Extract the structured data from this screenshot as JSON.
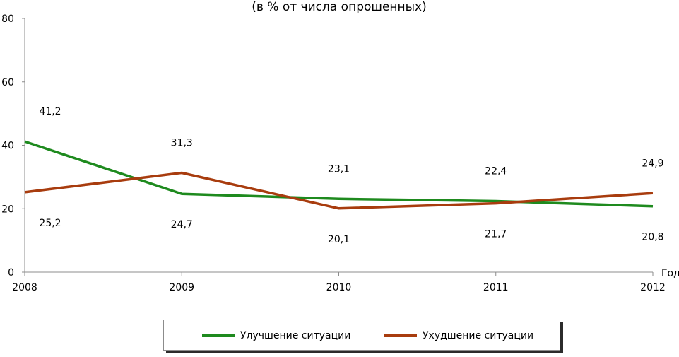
{
  "chart_data": {
    "type": "line",
    "title": "(в % от числа опрошенных)",
    "x_axis_label": "Год",
    "categories": [
      "2008",
      "2009",
      "2010",
      "2011",
      "2012"
    ],
    "ylim": [
      0,
      80
    ],
    "y_ticks": [
      "0",
      "20",
      "40",
      "60",
      "80"
    ],
    "grid": false,
    "legend_position": "bottom",
    "series": [
      {
        "name": "Улучшение ситуации",
        "color": "#1e8a1e",
        "values": [
          41.2,
          24.7,
          23.1,
          22.4,
          20.8
        ],
        "labels": [
          "41,2",
          "24,7",
          "23,1",
          "22,4",
          "20,8"
        ]
      },
      {
        "name": "Ухудшение ситуации",
        "color": "#a83c0e",
        "values": [
          25.2,
          31.3,
          20.1,
          21.7,
          24.9
        ],
        "labels": [
          "25,2",
          "31,3",
          "20,1",
          "21,7",
          "24,9"
        ]
      }
    ]
  }
}
